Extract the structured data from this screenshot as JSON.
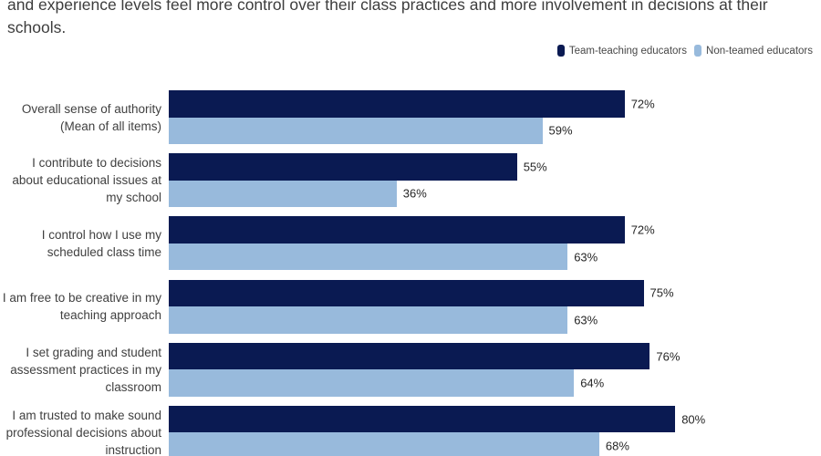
{
  "header": {
    "subtitle_lines": [
      "and experience levels feel more control over their class practices and more involvement in decisions at their",
      "schools."
    ]
  },
  "chart_data": {
    "type": "bar",
    "orientation": "horizontal",
    "subtitle": "and experience levels feel more control over their class practices and more involvement in decisions at their schools.",
    "categories": [
      "Overall sense of authority (Mean of all items)",
      "I contribute to decisions about educational issues at my school",
      "I control how I use my scheduled class time",
      "I am free to be creative in my teaching approach",
      "I set grading and student assessment practices in my classroom",
      "I am trusted to make sound professional decisions about instruction"
    ],
    "category_label_lines": [
      [
        "Overall sense of authority",
        "(Mean of all items)"
      ],
      [
        "I contribute to decisions",
        "about educational issues at",
        "my school"
      ],
      [
        "I control how I use my",
        "scheduled class time"
      ],
      [
        "I am free to be creative in my",
        "teaching approach"
      ],
      [
        "I set grading and student",
        "assessment practices in my",
        "classroom"
      ],
      [
        "I am trusted to make sound",
        "professional decisions about",
        "instruction"
      ]
    ],
    "series": [
      {
        "name": "Team-teaching educators",
        "color": "#0A1A52",
        "values": [
          72,
          55,
          72,
          75,
          76,
          80
        ]
      },
      {
        "name": "Non-teamed educators",
        "color": "#98BADC",
        "values": [
          59,
          36,
          63,
          63,
          64,
          68
        ]
      }
    ],
    "value_suffix": "%",
    "xlim": [
      0,
      100
    ],
    "grid": false,
    "axis_ticks": "none",
    "legend_position": "top-right"
  }
}
